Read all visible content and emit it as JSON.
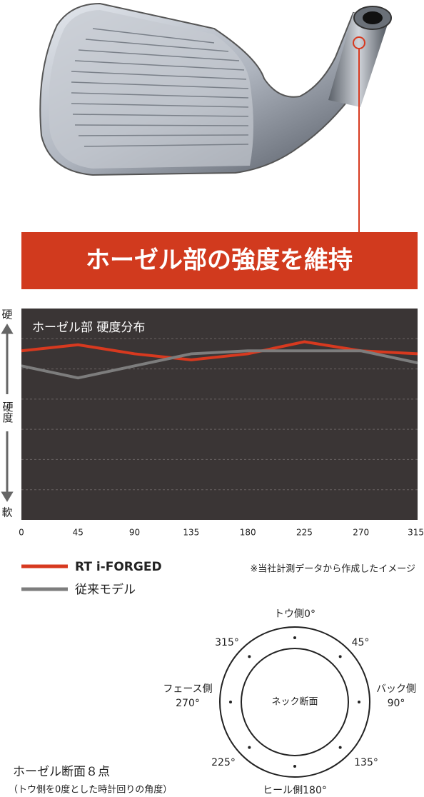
{
  "banner": {
    "title": "ホーゼル部の強度を維持"
  },
  "chart_data": {
    "type": "line",
    "title": "ホーゼル部 硬度分布",
    "y_axis": {
      "top": "硬",
      "label": "硬度",
      "bottom": "軟"
    },
    "x": [
      0,
      45,
      90,
      135,
      180,
      225,
      270,
      315
    ],
    "xlim": [
      0,
      315
    ],
    "xticks": [
      0,
      45,
      90,
      135,
      180,
      225,
      270,
      315
    ],
    "ylim": [
      0,
      7
    ],
    "yticks": [
      1,
      2,
      3,
      4,
      5,
      6
    ],
    "grid": true,
    "series": [
      {
        "name": "RT i-FORGED",
        "color": "#d7391f",
        "values": [
          5.6,
          5.8,
          5.5,
          5.3,
          5.5,
          5.9,
          5.6,
          5.5
        ]
      },
      {
        "name": "従来モデル",
        "color": "#7d7d7d",
        "values": [
          5.1,
          4.7,
          5.1,
          5.5,
          5.6,
          5.6,
          5.6,
          5.2
        ]
      }
    ],
    "note": "※当社計測データから作成したイメージ"
  },
  "diagram": {
    "title": "ホーゼル断面８点",
    "subtitle": "（トウ側を0度とした時計回りの角度）",
    "center_label": "ネック断面",
    "points": [
      [
        "トウ側0°"
      ],
      [
        "45°"
      ],
      [
        "バック側",
        "90°"
      ],
      [
        "135°"
      ],
      [
        "ヒール側180°"
      ],
      [
        "225°"
      ],
      [
        "フェース側",
        "270°"
      ],
      [
        "315°"
      ]
    ]
  }
}
